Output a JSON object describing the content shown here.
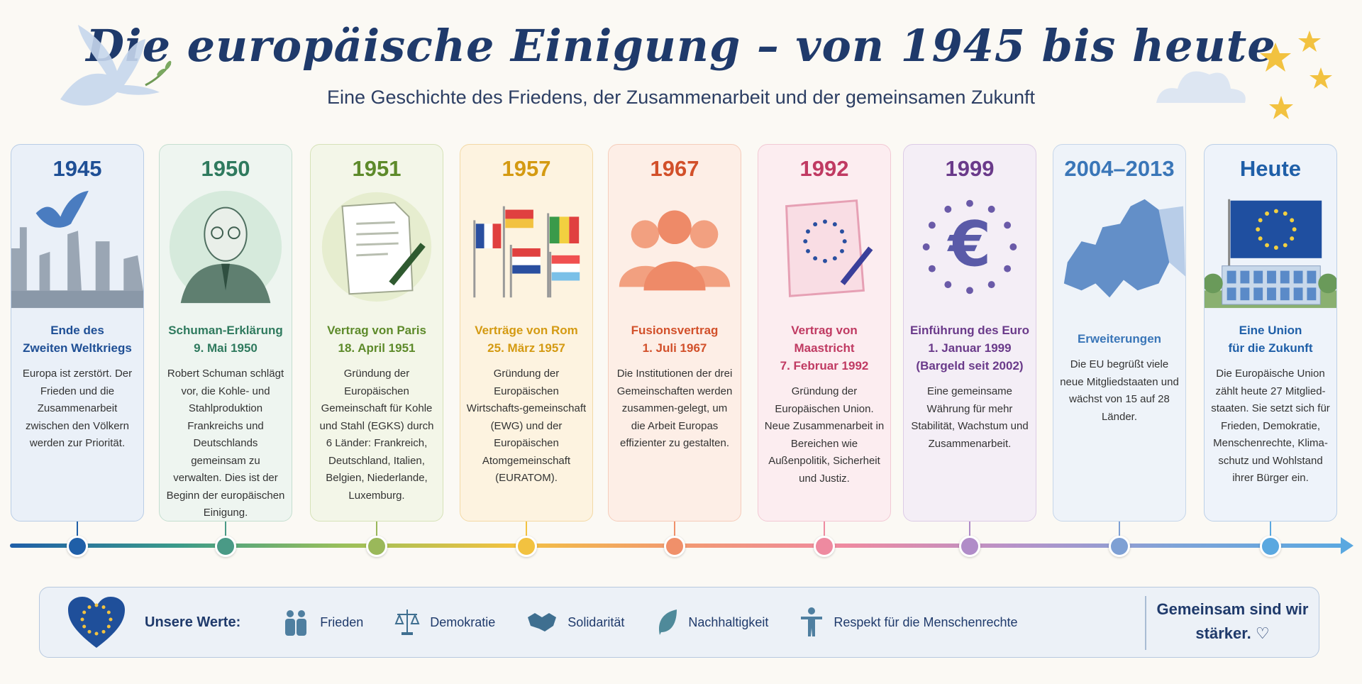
{
  "header": {
    "title": "Die europäische Einigung – von 1945 bis heute",
    "subtitle": "Eine Geschichte des Friedens, der Zusammenarbeit und der gemeinsamen Zukunft"
  },
  "events": [
    {
      "year": "1945",
      "head": [
        "Ende des",
        "Zweiten Weltkriegs"
      ],
      "body": "Europa ist zerstört. Der Frieden und die Zusammenarbeit zwischen den Völkern werden zur Priorität.",
      "color": "#1f4f95",
      "bg": "#eaf0f8",
      "border": "#b9cde6",
      "icon": "dove-ruins"
    },
    {
      "year": "1950",
      "head": [
        "Schuman-Erklärung",
        "9. Mai 1950"
      ],
      "body": "Robert Schuman schlägt vor, die Kohle- und Stahlproduktion Frankreichs und Deutschlands gemeinsam zu verwalten. Dies ist der Beginn der europäischen Einigung.",
      "color": "#2f7a5e",
      "bg": "#eef5f0",
      "border": "#c5dfd0",
      "icon": "portrait"
    },
    {
      "year": "1951",
      "head": [
        "Vertrag von Paris",
        "18. April 1951"
      ],
      "body": "Gründung der Europäischen Gemeinschaft für Kohle und Stahl (EGKS) durch 6 Länder: Frankreich, Deutschland, Italien, Belgien, Niederlande, Luxemburg.",
      "color": "#5d8a2a",
      "bg": "#f3f6e8",
      "border": "#d6e2b8",
      "icon": "document-pen"
    },
    {
      "year": "1957",
      "head": [
        "Verträge von Rom",
        "25. März 1957"
      ],
      "body": "Gründung der Europäischen Wirtschafts-gemeinschaft (EWG) und der Europäischen Atomgemeinschaft (EURATOM).",
      "color": "#d49a12",
      "bg": "#fdf3e0",
      "border": "#f3d9a5",
      "icon": "flags"
    },
    {
      "year": "1967",
      "head": [
        "Fusionsvertrag",
        "1. Juli 1967"
      ],
      "body": "Die Institutionen der drei Gemeinschaften werden zusammen-gelegt, um die Arbeit Europas effizienter zu gestalten.",
      "color": "#d2502a",
      "bg": "#fdeee6",
      "border": "#f5cdbb",
      "icon": "people"
    },
    {
      "year": "1992",
      "head": [
        "Vertrag von Maastricht",
        "7. Februar 1992"
      ],
      "body": "Gründung der Europäischen Union. Neue Zusammenarbeit in Bereichen wie Außenpolitik, Sicherheit und Justiz.",
      "color": "#c03a62",
      "bg": "#fcedf0",
      "border": "#f2c9d4",
      "icon": "treaty-stars"
    },
    {
      "year": "1999",
      "head": [
        "Einführung des Euro",
        "1. Januar 1999",
        "(Bargeld seit 2002)"
      ],
      "body": "Eine gemeinsame Währung für mehr Stabilität, Wachstum und Zusammenarbeit.",
      "color": "#6a3a8a",
      "bg": "#f4eef6",
      "border": "#dccbe6",
      "icon": "euro"
    },
    {
      "year": "2004–2013",
      "head": [
        "Erweiterungen"
      ],
      "body": "Die EU begrüßt viele neue Mitgliedstaaten und wächst von 15 auf 28 Länder.",
      "color": "#3a76b8",
      "bg": "#eef3f9",
      "border": "#c6d6ea",
      "icon": "europe-map"
    },
    {
      "year": "Heute",
      "head": [
        "Eine Union",
        "für die Zukunft"
      ],
      "body": "Die Europäische Union zählt heute 27 Mitglied-staaten. Sie setzt sich für Frieden, Demokratie, Menschenrechte, Klima-schutz und Wohlstand ihrer Bürger ein.",
      "color": "#1f5fa8",
      "bg": "#eef3fa",
      "border": "#bcd0e8",
      "icon": "eu-flag-building"
    }
  ],
  "timeline_dot_colors": [
    "#1f5fa8",
    "#4a9a86",
    "#9ab85a",
    "#f2c240",
    "#f0906a",
    "#ee8aa0",
    "#b08cc8",
    "#7ea0d4",
    "#5aa8e0"
  ],
  "footer": {
    "label": "Unsere Werte:",
    "values": [
      {
        "label": "Frieden",
        "icon": "people-icon"
      },
      {
        "label": "Demokratie",
        "icon": "scales-icon"
      },
      {
        "label": "Solidarität",
        "icon": "handshake-icon"
      },
      {
        "label": "Nachhaltigkeit",
        "icon": "leaf-icon"
      },
      {
        "label": "Respekt für die Menschenrechte",
        "icon": "person-icon"
      }
    ],
    "slogan_line1": "Gemeinsam sind wir",
    "slogan_line2": "stärker."
  }
}
